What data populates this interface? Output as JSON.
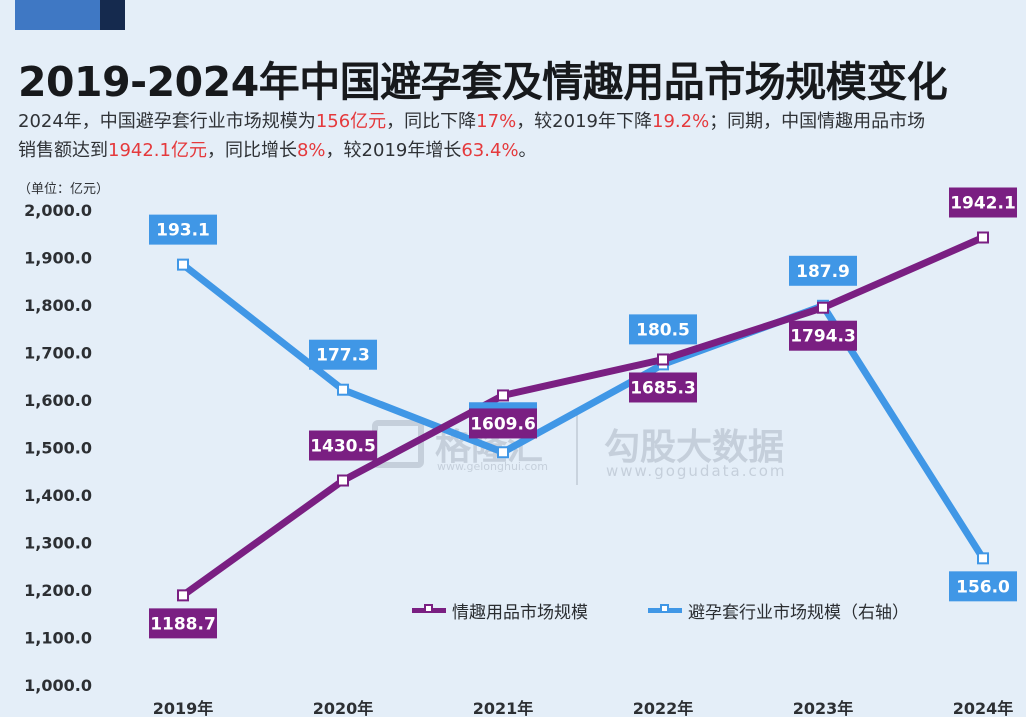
{
  "header": {
    "title": "2019-2024年中国避孕套及情趣用品市场规模变化",
    "subtitle_parts": [
      {
        "text": "2024年，中国避孕套行业市场规模为",
        "hl": false
      },
      {
        "text": "156亿元",
        "hl": true
      },
      {
        "text": "，同比下降",
        "hl": false
      },
      {
        "text": "17%",
        "hl": true
      },
      {
        "text": "，较2019年下降",
        "hl": false
      },
      {
        "text": "19.2%",
        "hl": true
      },
      {
        "text": "；同期，中国情趣用品市场",
        "hl": false
      },
      {
        "text": "销售额达到",
        "hl": false,
        "break_before": true
      },
      {
        "text": "1942.1亿元",
        "hl": true
      },
      {
        "text": "，同比增长",
        "hl": false
      },
      {
        "text": "8%",
        "hl": true
      },
      {
        "text": "，较2019年增长",
        "hl": false
      },
      {
        "text": "63.4%",
        "hl": true
      },
      {
        "text": "。",
        "hl": false
      }
    ]
  },
  "chart_data": {
    "type": "line",
    "unit_label": "（单位：亿元）",
    "categories": [
      "2019年",
      "2020年",
      "2021年",
      "2022年",
      "2023年",
      "2024年"
    ],
    "left_axis": {
      "ylim": [
        1000,
        2000
      ],
      "ticks": [
        "1,000.0",
        "1,100.0",
        "1,200.0",
        "1,300.0",
        "1,400.0",
        "1,500.0",
        "1,600.0",
        "1,700.0",
        "1,800.0",
        "1,900.0",
        "2,000.0"
      ]
    },
    "right_axis": {
      "ylim": [
        140,
        200
      ],
      "shown": false
    },
    "series": [
      {
        "name": "情趣用品市场规模",
        "axis": "left",
        "color": "#7a1f82",
        "values": [
          1188.7,
          1430.5,
          1609.6,
          1685.3,
          1794.3,
          1942.1
        ],
        "labels": [
          "1188.7",
          "1430.5",
          "1609.6",
          "1685.3",
          "1794.3",
          "1942.1"
        ],
        "label_side": [
          "below",
          "above",
          "below",
          "below",
          "below",
          "above"
        ]
      },
      {
        "name": "避孕套行业市场规模（右轴）",
        "axis": "right",
        "color": "#4097e6",
        "values": [
          193.1,
          177.3,
          169.4,
          180.5,
          187.9,
          156.0
        ],
        "labels": [
          "193.1",
          "177.3",
          "169.4",
          "180.5",
          "187.9",
          "156.0"
        ],
        "label_side": [
          "above",
          "above",
          "above",
          "above",
          "above",
          "below"
        ]
      }
    ],
    "legend_position": "lower-right",
    "grid": false
  },
  "watermark": {
    "brand1": "格隆汇",
    "brand1_url": "www.gelonghui.com",
    "brand2": "勾股大数据",
    "brand2_url": "www.gogudata.com"
  }
}
